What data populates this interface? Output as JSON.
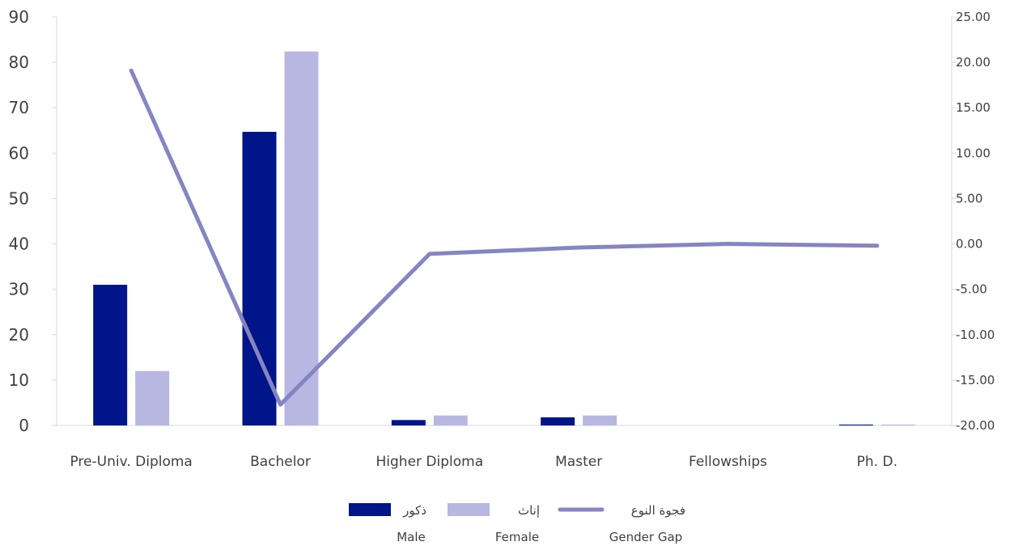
{
  "chart_data": {
    "type": "bar",
    "categories": [
      "Pre-Univ. Diploma",
      "Bachelor",
      "Higher Diploma",
      "Master",
      "Fellowships",
      "Ph. D."
    ],
    "series": [
      {
        "name": "ذكور",
        "name_en": "Male",
        "type": "bar",
        "axis": "left",
        "color": "#001589",
        "values": [
          31.0,
          64.7,
          1.2,
          1.8,
          0.0,
          0.2
        ]
      },
      {
        "name": "إناث",
        "name_en": "Female",
        "type": "bar",
        "axis": "left",
        "color": "#B8B7E1",
        "values": [
          12.0,
          82.4,
          2.2,
          2.2,
          0.0,
          0.2
        ]
      },
      {
        "name": "فجوة النوع",
        "name_en": "Gender Gap",
        "type": "line",
        "axis": "right",
        "color": "#8585C3",
        "values": [
          19.1,
          -17.7,
          -1.1,
          -0.4,
          0.0,
          -0.2
        ]
      }
    ],
    "left_axis": {
      "min": 0,
      "max": 90,
      "ticks": [
        "0",
        "10",
        "20",
        "30",
        "40",
        "50",
        "60",
        "70",
        "80",
        "90"
      ]
    },
    "right_axis": {
      "min": -20,
      "max": 25,
      "ticks": [
        "-20.00",
        "-15.00",
        "-10.00",
        "-5.00",
        "0.00",
        "5.00",
        "10.00",
        "15.00",
        "20.00",
        "25.00"
      ]
    },
    "grid": false,
    "legend_position": "bottom"
  }
}
